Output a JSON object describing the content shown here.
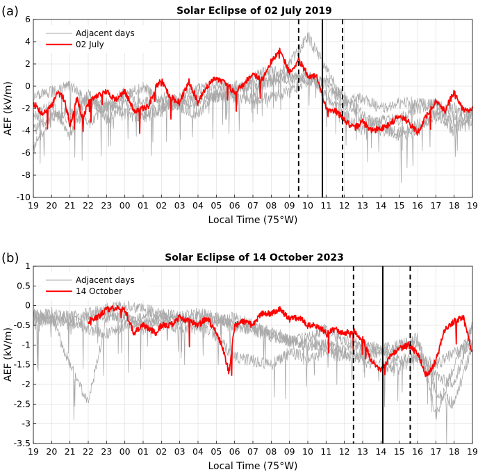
{
  "chart_data": [
    {
      "type": "line",
      "panel_label": "(a)",
      "title": "Solar Eclipse of 02 July 2019",
      "xlabel": "Local Time (75°W)",
      "ylabel": "AEF (kV/m)",
      "ylim": [
        -10,
        6
      ],
      "yticks": [
        -10,
        -8,
        -6,
        -4,
        -2,
        0,
        2,
        4,
        6
      ],
      "ytick_labels": [
        "-10",
        "-8",
        "-6",
        "-4",
        "-2",
        "0",
        "2",
        "4",
        "6"
      ],
      "xticks": [
        "19",
        "20",
        "21",
        "22",
        "23",
        "00",
        "01",
        "02",
        "03",
        "04",
        "05",
        "06",
        "07",
        "08",
        "09",
        "10",
        "11",
        "12",
        "13",
        "14",
        "15",
        "16",
        "17",
        "18",
        "19"
      ],
      "grid": true,
      "legend_position": "top-left",
      "legend": [
        "Adjacent days",
        "02 July"
      ],
      "series_colors": {
        "adjacent": "#aaaaaa",
        "event": "#ff0000"
      },
      "eclipse_markers": {
        "start": 14.5,
        "max": 15.8,
        "end": 16.9
      },
      "event_series": {
        "name": "02 July",
        "x": [
          0,
          0.5,
          1,
          1.3,
          1.7,
          2,
          2.4,
          2.7,
          3,
          3.5,
          4,
          4.5,
          5,
          5.5,
          6,
          6.3,
          6.7,
          7,
          7.5,
          8,
          8.5,
          9,
          9.5,
          10,
          10.5,
          11,
          11.5,
          12,
          12.5,
          13,
          13.5,
          14,
          14.5,
          15,
          15.5,
          16,
          16.5,
          17,
          17.5,
          18,
          18.5,
          19,
          19.5,
          20,
          20.5,
          21,
          21.5,
          22,
          22.5,
          23,
          23.5,
          24
        ],
        "y": [
          -1.5,
          -2.5,
          -1.8,
          -0.5,
          -1.2,
          -3.5,
          -1.0,
          -3.0,
          -1.5,
          -0.8,
          -0.5,
          -1.2,
          -0.5,
          -2.2,
          -2.0,
          -1.8,
          0.0,
          0.5,
          -1.0,
          -1.5,
          0.5,
          -1.5,
          0.0,
          0.8,
          0.2,
          -0.5,
          0.2,
          1.2,
          0.5,
          2.2,
          3.2,
          1.2,
          2.4,
          1.0,
          0.8,
          -2.0,
          -2.2,
          -3.0,
          -3.8,
          -3.2,
          -4.0,
          -3.8,
          -3.4,
          -2.6,
          -3.2,
          -4.2,
          -2.6,
          -1.4,
          -2.2,
          -0.5,
          -2.2,
          -2.0
        ]
      },
      "adjacent_series": [
        {
          "x": [
            0,
            1,
            2,
            3,
            4,
            5,
            6,
            7,
            8,
            9,
            10,
            11,
            12,
            13,
            14,
            15,
            16,
            17,
            18,
            19,
            20,
            21,
            22,
            23,
            24
          ],
          "y": [
            -4.0,
            -2.5,
            -3.0,
            -1.0,
            -2.0,
            -0.5,
            -1.5,
            -1.0,
            -1.5,
            -0.8,
            -1.0,
            -0.3,
            0.3,
            0.5,
            1.0,
            0.8,
            0.0,
            -1.5,
            -3.0,
            -4.0,
            -4.2,
            -3.5,
            -2.5,
            -2.8,
            -2.4
          ]
        },
        {
          "x": [
            0,
            1,
            2,
            3,
            4,
            5,
            6,
            7,
            8,
            9,
            10,
            11,
            12,
            13,
            14,
            15,
            16,
            17,
            18,
            19,
            20,
            21,
            22,
            23,
            24
          ],
          "y": [
            -1.0,
            -0.5,
            0.0,
            -1.5,
            -2.0,
            -1.0,
            0.0,
            -1.5,
            -1.8,
            -2.5,
            -0.5,
            0.0,
            -0.5,
            0.5,
            2.0,
            4.5,
            1.5,
            -1.5,
            -1.0,
            -2.0,
            -1.5,
            -1.5,
            -1.8,
            -2.0,
            -2.5
          ]
        },
        {
          "x": [
            0,
            1,
            2,
            3,
            4,
            5,
            6,
            7,
            8,
            9,
            10,
            11,
            12,
            13,
            14,
            15,
            16,
            17,
            18,
            19,
            20,
            21,
            22,
            23,
            24
          ],
          "y": [
            -5.5,
            -3.0,
            -2.0,
            -3.5,
            -1.5,
            -2.5,
            -2.8,
            -2.2,
            -1.5,
            -1.5,
            -0.8,
            -1.0,
            -1.2,
            -1.0,
            -0.5,
            0.5,
            0.5,
            -1.0,
            -2.5,
            -3.5,
            -4.5,
            -4.0,
            -2.5,
            -4.0,
            -2.5
          ]
        },
        {
          "x": [
            0,
            1,
            2,
            3,
            4,
            5,
            6,
            7,
            8,
            9,
            10,
            11,
            12,
            13,
            14,
            15,
            16,
            17,
            18,
            19,
            20,
            21,
            22,
            23,
            24
          ],
          "y": [
            -3.0,
            -1.5,
            -4.5,
            -0.5,
            -3.0,
            -1.5,
            -2.5,
            -2.0,
            -1.0,
            -0.2,
            0.2,
            -0.5,
            0.8,
            1.5,
            0.5,
            1.0,
            -0.8,
            -2.5,
            -4.0,
            -3.0,
            -3.0,
            -2.0,
            -1.5,
            -3.5,
            -3.0
          ]
        }
      ]
    },
    {
      "type": "line",
      "panel_label": "(b)",
      "title": "Solar Eclipse of 14 October 2023",
      "xlabel": "Local Time (75°W)",
      "ylabel": "AEF (kV/m)",
      "ylim": [
        -3.5,
        1
      ],
      "yticks": [
        -3.5,
        -3,
        -2.5,
        -2,
        -1.5,
        -1,
        -0.5,
        0,
        0.5,
        1
      ],
      "ytick_labels": [
        "-3.5",
        "-3",
        "-2.5",
        "-2",
        "-1.5",
        "-1",
        "-0.5",
        "0",
        "0.5",
        "1"
      ],
      "xticks": [
        "19",
        "20",
        "21",
        "22",
        "23",
        "00",
        "01",
        "02",
        "03",
        "04",
        "05",
        "06",
        "07",
        "08",
        "09",
        "10",
        "11",
        "12",
        "13",
        "14",
        "15",
        "16",
        "17",
        "18",
        "19"
      ],
      "grid": true,
      "legend_position": "top-left",
      "legend": [
        "Adjacent days",
        "14 October"
      ],
      "series_colors": {
        "adjacent": "#aaaaaa",
        "event": "#ff0000"
      },
      "eclipse_markers": {
        "start": 17.5,
        "max": 19.1,
        "end": 20.6
      },
      "event_series": {
        "name": "14 October",
        "x": [
          3,
          3.5,
          4,
          4.5,
          5,
          5.5,
          6,
          6.3,
          6.7,
          7,
          7.5,
          8,
          8.5,
          9,
          9.5,
          10,
          10.3,
          10.7,
          11,
          11.5,
          12,
          12.5,
          13,
          13.5,
          14,
          14.5,
          15,
          15.5,
          16,
          16.5,
          17,
          17.5,
          18,
          18.5,
          19,
          19.5,
          20,
          20.5,
          21,
          21.5,
          22,
          22.5,
          23,
          23.5,
          24
        ],
        "y": [
          -0.4,
          -0.3,
          -0.1,
          -0.05,
          -0.1,
          -0.7,
          -0.5,
          -0.6,
          -0.7,
          -0.5,
          -0.5,
          -0.3,
          -0.4,
          -0.5,
          -0.3,
          -0.7,
          -1.0,
          -1.7,
          -0.5,
          -0.4,
          -0.5,
          -0.2,
          -0.2,
          -0.1,
          -0.35,
          -0.3,
          -0.5,
          -0.5,
          -0.7,
          -0.6,
          -0.7,
          -0.65,
          -0.85,
          -1.4,
          -1.65,
          -1.3,
          -1.1,
          -1.0,
          -1.2,
          -1.8,
          -1.4,
          -0.6,
          -0.4,
          -0.3,
          -1.2
        ]
      },
      "adjacent_series": [
        {
          "x": [
            0,
            1,
            2,
            3,
            4,
            5,
            6,
            7,
            8,
            9,
            10,
            11,
            12,
            13,
            14,
            15,
            16,
            17,
            18,
            19,
            20,
            21,
            22,
            23,
            24
          ],
          "y": [
            -0.4,
            -0.3,
            -0.5,
            -0.3,
            -0.2,
            -0.3,
            -0.5,
            -0.4,
            -0.6,
            -0.5,
            -0.8,
            -1.3,
            -1.4,
            -1.5,
            -1.2,
            -1.3,
            -1.2,
            -1.3,
            -1.2,
            -1.2,
            -1.4,
            -1.3,
            -1.5,
            -1.2,
            -1.0
          ]
        },
        {
          "x": [
            0,
            1,
            2,
            3,
            4,
            5,
            6,
            7,
            8,
            9,
            10,
            11,
            12,
            13,
            14,
            15,
            16,
            17,
            18,
            19,
            20,
            21,
            22,
            23,
            24
          ],
          "y": [
            -0.5,
            -0.3,
            -1.5,
            -2.5,
            -0.3,
            -0.2,
            -0.6,
            -0.3,
            -0.4,
            -0.3,
            -0.4,
            -0.5,
            -0.6,
            -0.8,
            -0.9,
            -1.0,
            -1.0,
            -1.1,
            -1.0,
            -1.1,
            -1.0,
            -0.9,
            -2.2,
            -2.5,
            -1.0
          ]
        },
        {
          "x": [
            0,
            1,
            2,
            3,
            4,
            5,
            6,
            7,
            8,
            9,
            10,
            11,
            12,
            13,
            14,
            15,
            16,
            17,
            18,
            19,
            20,
            21,
            22,
            23,
            24
          ],
          "y": [
            -0.3,
            -0.2,
            -0.3,
            -0.2,
            -0.1,
            0.0,
            -0.1,
            -0.2,
            -0.3,
            -0.5,
            -0.4,
            -0.3,
            -0.5,
            -0.7,
            -0.8,
            -1.0,
            -1.0,
            -1.2,
            -1.4,
            -1.5,
            -1.6,
            -1.3,
            -1.8,
            -2.0,
            -0.5
          ]
        },
        {
          "x": [
            0,
            1,
            2,
            3,
            4,
            5,
            6,
            7,
            8,
            9,
            10,
            11,
            12,
            13,
            14,
            15,
            16,
            17,
            18,
            19,
            20,
            21,
            22,
            23,
            24
          ],
          "y": [
            -0.2,
            -0.4,
            -0.3,
            -0.6,
            -0.7,
            -0.5,
            -0.3,
            -0.2,
            -0.3,
            -0.2,
            -0.3,
            -0.5,
            -0.6,
            -0.7,
            -0.9,
            -0.8,
            -0.6,
            -0.9,
            -1.0,
            -1.2,
            -1.1,
            -0.8,
            -2.8,
            -1.5,
            -0.6
          ]
        }
      ]
    }
  ]
}
